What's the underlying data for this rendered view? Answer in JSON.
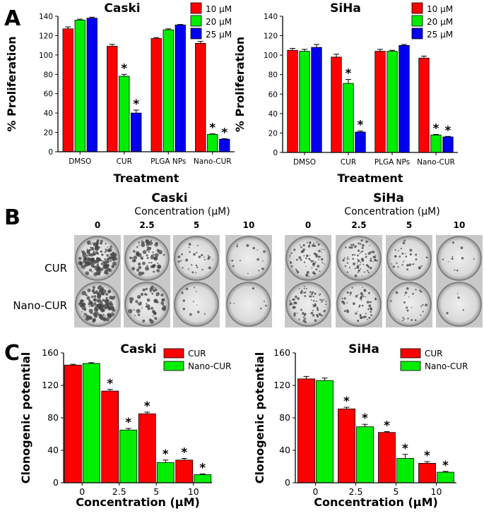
{
  "panels": {
    "A": "A",
    "B": "B",
    "C": "C"
  },
  "colors": {
    "red": "#ff0000",
    "green": "#00ee00",
    "blue": "#0000ee"
  },
  "panel_b": {
    "caski_title": "Caski",
    "siha_title": "SiHa",
    "concentration_header": "Concentration (μM)",
    "columns": [
      "0",
      "2.5",
      "5",
      "10"
    ],
    "rows": [
      "CUR",
      "Nano-CUR"
    ]
  },
  "chart_data": [
    {
      "type": "bar",
      "title": "Caski",
      "xlabel": "Treatment",
      "ylabel": "% Proliferation",
      "ylim": [
        0,
        140
      ],
      "yticks": [
        0,
        20,
        40,
        60,
        80,
        100,
        120,
        140
      ],
      "categories": [
        "DMSO",
        "CUR",
        "PLGA NPs",
        "Nano-CUR"
      ],
      "legend_position": "top-right",
      "series": [
        {
          "name": "10 μM",
          "color": "#ff0000",
          "values": [
            127,
            109,
            117,
            112
          ],
          "errors": [
            2,
            2,
            1,
            2
          ]
        },
        {
          "name": "20 μM",
          "color": "#00ee00",
          "values": [
            136,
            78,
            126,
            18
          ],
          "errors": [
            1,
            2,
            1,
            0.5
          ]
        },
        {
          "name": "25 μM",
          "color": "#0000ee",
          "values": [
            138,
            40,
            131,
            13
          ],
          "errors": [
            1,
            3,
            0.5,
            0.5
          ]
        }
      ],
      "annotations": [
        {
          "category": "CUR",
          "series": "20 μM",
          "text": "*"
        },
        {
          "category": "CUR",
          "series": "25 μM",
          "text": "*"
        },
        {
          "category": "Nano-CUR",
          "series": "20 μM",
          "text": "*"
        },
        {
          "category": "Nano-CUR",
          "series": "25 μM",
          "text": "*"
        }
      ]
    },
    {
      "type": "bar",
      "title": "SiHa",
      "xlabel": "Treatment",
      "ylabel": "% Proliferation",
      "ylim": [
        0,
        140
      ],
      "yticks": [
        0,
        20,
        40,
        60,
        80,
        100,
        120,
        140
      ],
      "categories": [
        "DMSO",
        "CUR",
        "PLGA NPs",
        "Nano-CUR"
      ],
      "legend_position": "top-right",
      "series": [
        {
          "name": "10 μM",
          "color": "#ff0000",
          "values": [
            105,
            98,
            104,
            97
          ],
          "errors": [
            2,
            3,
            2,
            2
          ]
        },
        {
          "name": "20 μM",
          "color": "#00ee00",
          "values": [
            104,
            71,
            104,
            18
          ],
          "errors": [
            2,
            4,
            1,
            0.5
          ]
        },
        {
          "name": "25 μM",
          "color": "#0000ee",
          "values": [
            108,
            21,
            110,
            16
          ],
          "errors": [
            3,
            1,
            1,
            0.5
          ]
        }
      ],
      "annotations": [
        {
          "category": "CUR",
          "series": "20 μM",
          "text": "*"
        },
        {
          "category": "CUR",
          "series": "25 μM",
          "text": "*"
        },
        {
          "category": "Nano-CUR",
          "series": "20 μM",
          "text": "*"
        },
        {
          "category": "Nano-CUR",
          "series": "25 μM",
          "text": "*"
        }
      ]
    },
    {
      "type": "bar",
      "title": "Caski",
      "xlabel": "Concentration (μM)",
      "ylabel": "Clonogenic potential",
      "ylim": [
        0,
        160
      ],
      "yticks": [
        0,
        40,
        80,
        120,
        160
      ],
      "categories": [
        "0",
        "2.5",
        "5",
        "10"
      ],
      "legend_position": "top-right",
      "series": [
        {
          "name": "CUR",
          "color": "#ff0000",
          "values": [
            145,
            113,
            85,
            28
          ],
          "errors": [
            1,
            2,
            2,
            2
          ]
        },
        {
          "name": "Nano-CUR",
          "color": "#00ee00",
          "values": [
            147,
            65,
            25,
            10
          ],
          "errors": [
            1,
            2,
            3,
            1
          ]
        }
      ],
      "annotations": [
        {
          "category": "2.5",
          "series": "CUR",
          "text": "*"
        },
        {
          "category": "2.5",
          "series": "Nano-CUR",
          "text": "*"
        },
        {
          "category": "5",
          "series": "CUR",
          "text": "*"
        },
        {
          "category": "5",
          "series": "Nano-CUR",
          "text": "*"
        },
        {
          "category": "10",
          "series": "CUR",
          "text": "*"
        },
        {
          "category": "10",
          "series": "Nano-CUR",
          "text": "*"
        }
      ]
    },
    {
      "type": "bar",
      "title": "SiHa",
      "xlabel": "Concentration (μM)",
      "ylabel": "Clonogenic potential",
      "ylim": [
        0,
        160
      ],
      "yticks": [
        0,
        40,
        80,
        120,
        160
      ],
      "categories": [
        "0",
        "2.5",
        "5",
        "10"
      ],
      "legend_position": "top-right",
      "series": [
        {
          "name": "CUR",
          "color": "#ff0000",
          "values": [
            128,
            91,
            62,
            24
          ],
          "errors": [
            3,
            2,
            1,
            2
          ]
        },
        {
          "name": "Nano-CUR",
          "color": "#00ee00",
          "values": [
            126,
            69,
            30,
            13
          ],
          "errors": [
            3,
            3,
            5,
            1
          ]
        }
      ],
      "annotations": [
        {
          "category": "2.5",
          "series": "CUR",
          "text": "*"
        },
        {
          "category": "2.5",
          "series": "Nano-CUR",
          "text": "*"
        },
        {
          "category": "5",
          "series": "CUR",
          "text": "*"
        },
        {
          "category": "5",
          "series": "Nano-CUR",
          "text": "*"
        },
        {
          "category": "10",
          "series": "CUR",
          "text": "*"
        },
        {
          "category": "10",
          "series": "Nano-CUR",
          "text": "*"
        }
      ]
    }
  ]
}
